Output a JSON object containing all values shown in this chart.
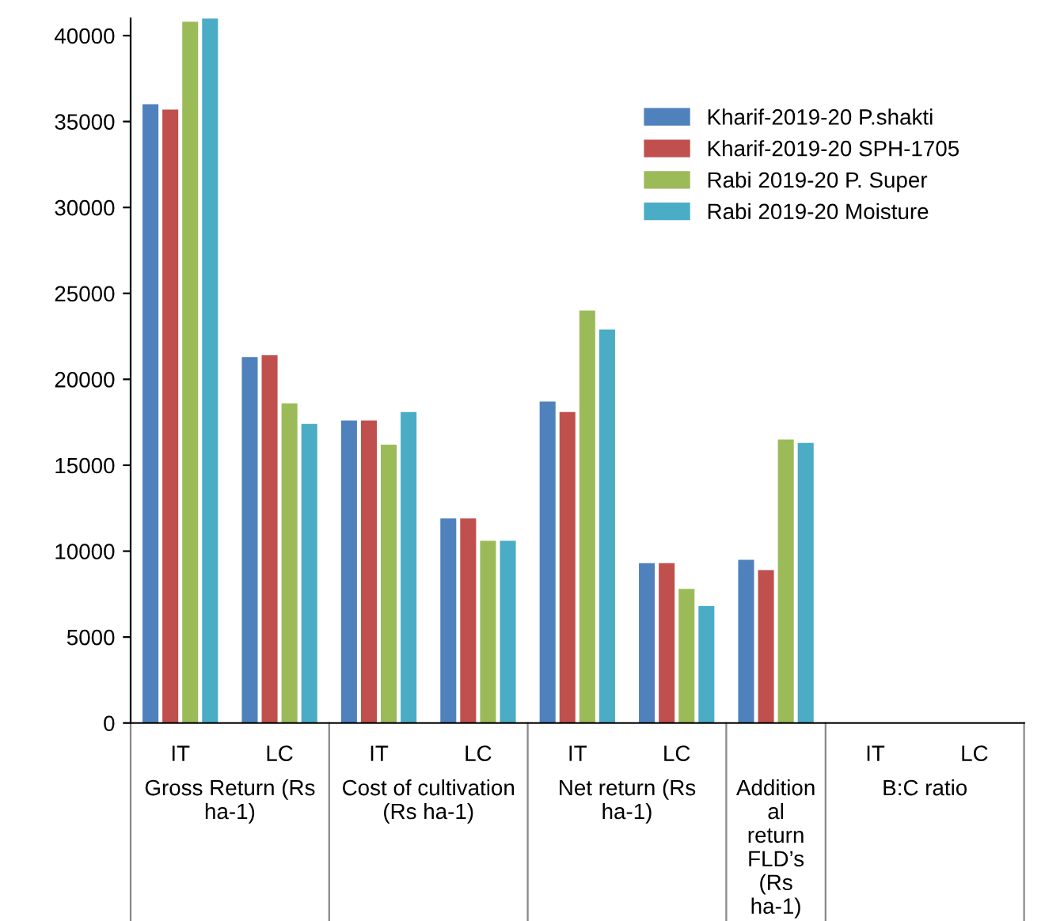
{
  "chart_data": {
    "type": "bar",
    "categories": [
      "IT",
      "LC",
      "IT",
      "LC",
      "IT",
      "LC",
      null,
      "IT",
      "LC"
    ],
    "series": [
      {
        "name": "Kharif-2019-20 P.shakti",
        "color": "#4f81bd",
        "values": [
          36000,
          21300,
          17600,
          11900,
          18700,
          9300,
          9500,
          0,
          0
        ]
      },
      {
        "name": "Kharif-2019-20 SPH-1705",
        "color": "#c0504d",
        "values": [
          35700,
          21400,
          17600,
          11900,
          18100,
          9300,
          8900,
          0,
          0
        ]
      },
      {
        "name": "Rabi 2019-20 P. Super",
        "color": "#9bbb59",
        "values": [
          40800,
          18600,
          16200,
          10600,
          24000,
          7800,
          16500,
          0,
          0
        ]
      },
      {
        "name": "Rabi 2019-20 Moisture",
        "color": "#4bacc6",
        "values": [
          41000,
          17400,
          18100,
          10600,
          22900,
          6800,
          16300,
          0,
          0
        ]
      }
    ],
    "annotations": [
      "Gross Return (Rs ha-1)",
      "Cost of cultivation (Rs ha-1)",
      "Net return (Rs ha-1)",
      "Additional return FLD’s (Rs ha-1)",
      "B:C ratio"
    ],
    "ylim": [
      0,
      41000
    ],
    "yticks": [
      0,
      5000,
      10000,
      15000,
      20000,
      25000,
      30000,
      35000,
      40000
    ],
    "grid": false,
    "legend": "top right"
  }
}
